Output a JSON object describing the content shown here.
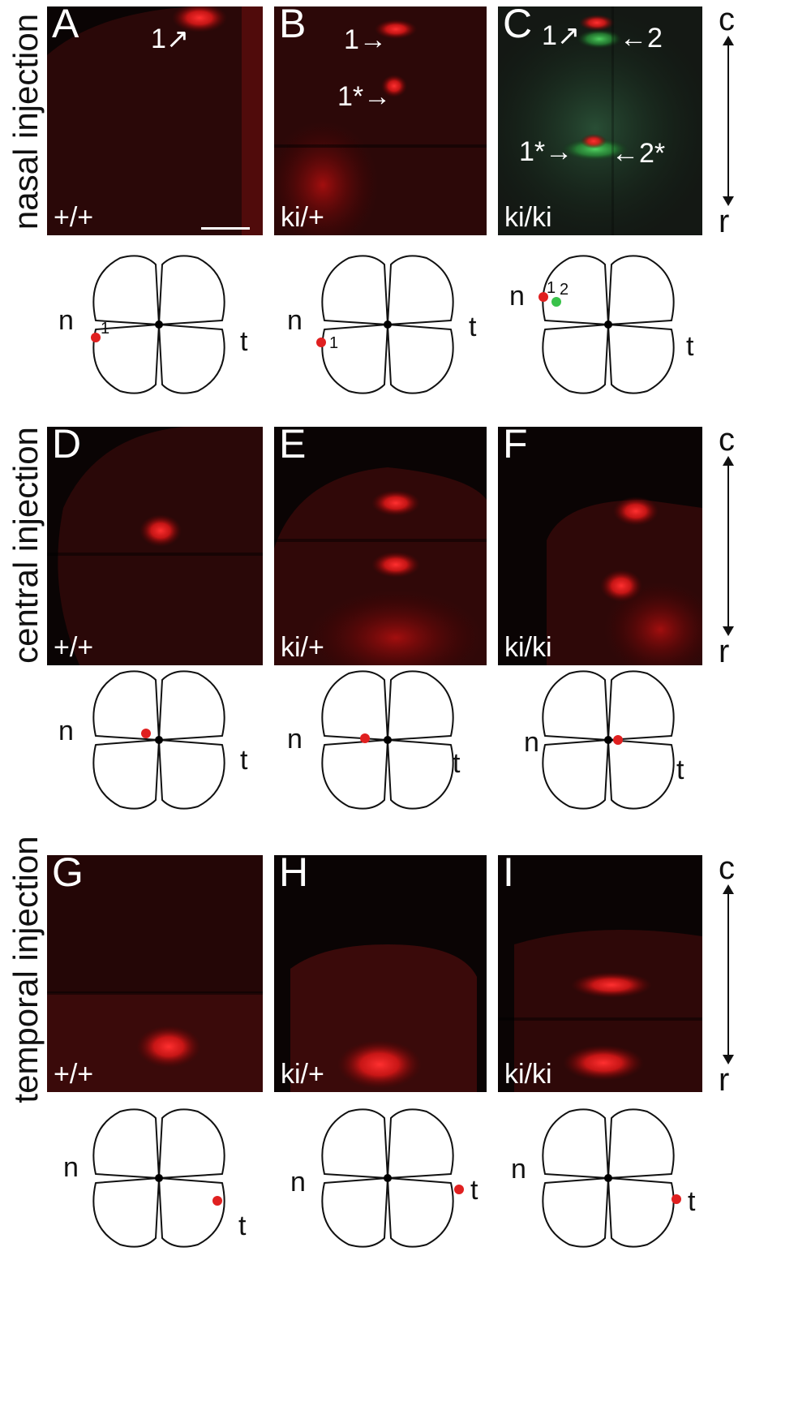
{
  "rows": [
    {
      "label": "nasal injection"
    },
    {
      "label": "central injection"
    },
    {
      "label": "temporal injection"
    }
  ],
  "axis": {
    "caudal": "c",
    "rostral": "r"
  },
  "panels": [
    {
      "letter": "A",
      "genotype": "+/+",
      "annotations": [
        "1"
      ]
    },
    {
      "letter": "B",
      "genotype": "ki/+",
      "annotations": [
        "1",
        "1*"
      ]
    },
    {
      "letter": "C",
      "genotype": "ki/ki",
      "annotations": [
        "1",
        "2",
        "1*",
        "2*"
      ]
    },
    {
      "letter": "D",
      "genotype": "+/+",
      "annotations": []
    },
    {
      "letter": "E",
      "genotype": "ki/+",
      "annotations": []
    },
    {
      "letter": "F",
      "genotype": "ki/ki",
      "annotations": []
    },
    {
      "letter": "G",
      "genotype": "+/+",
      "annotations": []
    },
    {
      "letter": "H",
      "genotype": "ki/+",
      "annotations": []
    },
    {
      "letter": "I",
      "genotype": "ki/ki",
      "annotations": []
    }
  ],
  "retina_labels": {
    "nasal": "n",
    "temporal": "t"
  },
  "injection_points": [
    "1",
    "1",
    "1",
    "2"
  ],
  "colors": {
    "label_red": "#ff2020",
    "label_green": "#39c24a",
    "panel_bg": "#0a0404"
  }
}
